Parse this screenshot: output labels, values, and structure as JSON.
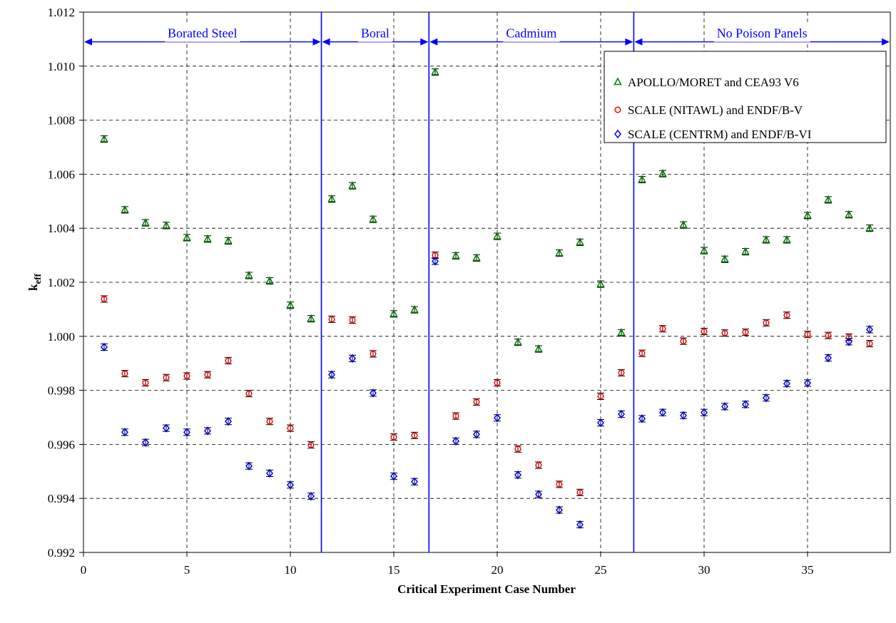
{
  "chart_data": {
    "type": "scatter",
    "xlabel": "Critical Experiment Case Number",
    "ylabel_main": "k",
    "ylabel_sub": "eff",
    "xlim": [
      0,
      39
    ],
    "ylim": [
      0.992,
      1.012
    ],
    "xticks": [
      0,
      5,
      10,
      15,
      20,
      25,
      30,
      35
    ],
    "xtick_labels": [
      "0",
      "5",
      "10",
      "15",
      "20",
      "25",
      "30",
      "35"
    ],
    "yticks": [
      0.992,
      0.994,
      0.996,
      0.998,
      1.0,
      1.002,
      1.004,
      1.006,
      1.008,
      1.01,
      1.012
    ],
    "ytick_labels": [
      "0.992",
      "0.994",
      "0.996",
      "0.998",
      "1.000",
      "1.002",
      "1.004",
      "1.006",
      "1.008",
      "1.010",
      "1.012"
    ],
    "grid": true,
    "legend_position": "top-right",
    "error_bar": 0.00012,
    "regions": [
      {
        "label": "Borated Steel",
        "x_start": 0,
        "x_end": 11.5
      },
      {
        "label": "Boral",
        "x_start": 11.5,
        "x_end": 16.7
      },
      {
        "label": "Cadmium",
        "x_start": 16.7,
        "x_end": 26.6
      },
      {
        "label": "No Poison Panels",
        "x_start": 26.6,
        "x_end": 39
      }
    ],
    "region_dividers": [
      11.5,
      16.7,
      26.6
    ],
    "region_arrow_y": 1.0109,
    "x": [
      1,
      2,
      3,
      4,
      5,
      6,
      7,
      8,
      9,
      10,
      11,
      12,
      13,
      14,
      15,
      16,
      17,
      18,
      19,
      20,
      21,
      22,
      23,
      24,
      25,
      26,
      27,
      28,
      29,
      30,
      31,
      32,
      33,
      34,
      35,
      36,
      37,
      38
    ],
    "series": [
      {
        "name": "APOLLO/MORET and CEA93 V6",
        "marker": "triangle",
        "color": "#008000",
        "values": [
          1.0073,
          1.00468,
          1.0042,
          1.0041,
          1.00365,
          1.0036,
          1.00353,
          1.00225,
          1.00205,
          1.00115,
          1.00065,
          1.00508,
          1.00557,
          1.00433,
          1.00083,
          1.00098,
          1.00978,
          1.00298,
          1.0029,
          1.0037,
          0.99978,
          0.99953,
          1.00308,
          1.00348,
          1.00193,
          1.00013,
          1.0058,
          1.00602,
          1.00412,
          1.00317,
          1.00285,
          1.00313,
          1.00357,
          1.00357,
          1.00447,
          1.00505,
          1.0045,
          1.004
        ]
      },
      {
        "name": "SCALE (NITAWL) and ENDF/B-V",
        "marker": "circle",
        "color": "#ff0000",
        "values": [
          1.00138,
          0.99862,
          0.99828,
          0.99847,
          0.99853,
          0.99858,
          0.9991,
          0.99788,
          0.99685,
          0.9966,
          0.99598,
          1.00063,
          1.0006,
          0.99935,
          0.99627,
          0.99633,
          1.003,
          0.99705,
          0.99757,
          0.99828,
          0.99583,
          0.99523,
          0.99452,
          0.99422,
          0.99778,
          0.99865,
          0.99937,
          1.00028,
          0.99982,
          1.00018,
          1.00012,
          1.00015,
          1.0005,
          1.00078,
          1.00007,
          1.00003,
          0.99997,
          0.99973
        ]
      },
      {
        "name": "SCALE (CENTRM) and ENDF/B-VI",
        "marker": "diamond",
        "color": "#0000ff",
        "values": [
          0.9996,
          0.99645,
          0.99607,
          0.9966,
          0.99645,
          0.9965,
          0.99685,
          0.9952,
          0.99493,
          0.9945,
          0.99408,
          0.99858,
          0.99918,
          0.9979,
          0.99482,
          0.99462,
          1.00278,
          0.99612,
          0.99637,
          0.99698,
          0.99487,
          0.99415,
          0.99357,
          0.99303,
          0.9968,
          0.99712,
          0.99695,
          0.99718,
          0.99707,
          0.99718,
          0.9974,
          0.99748,
          0.99772,
          0.99825,
          0.99827,
          0.9992,
          0.9998,
          1.00025
        ]
      }
    ]
  }
}
